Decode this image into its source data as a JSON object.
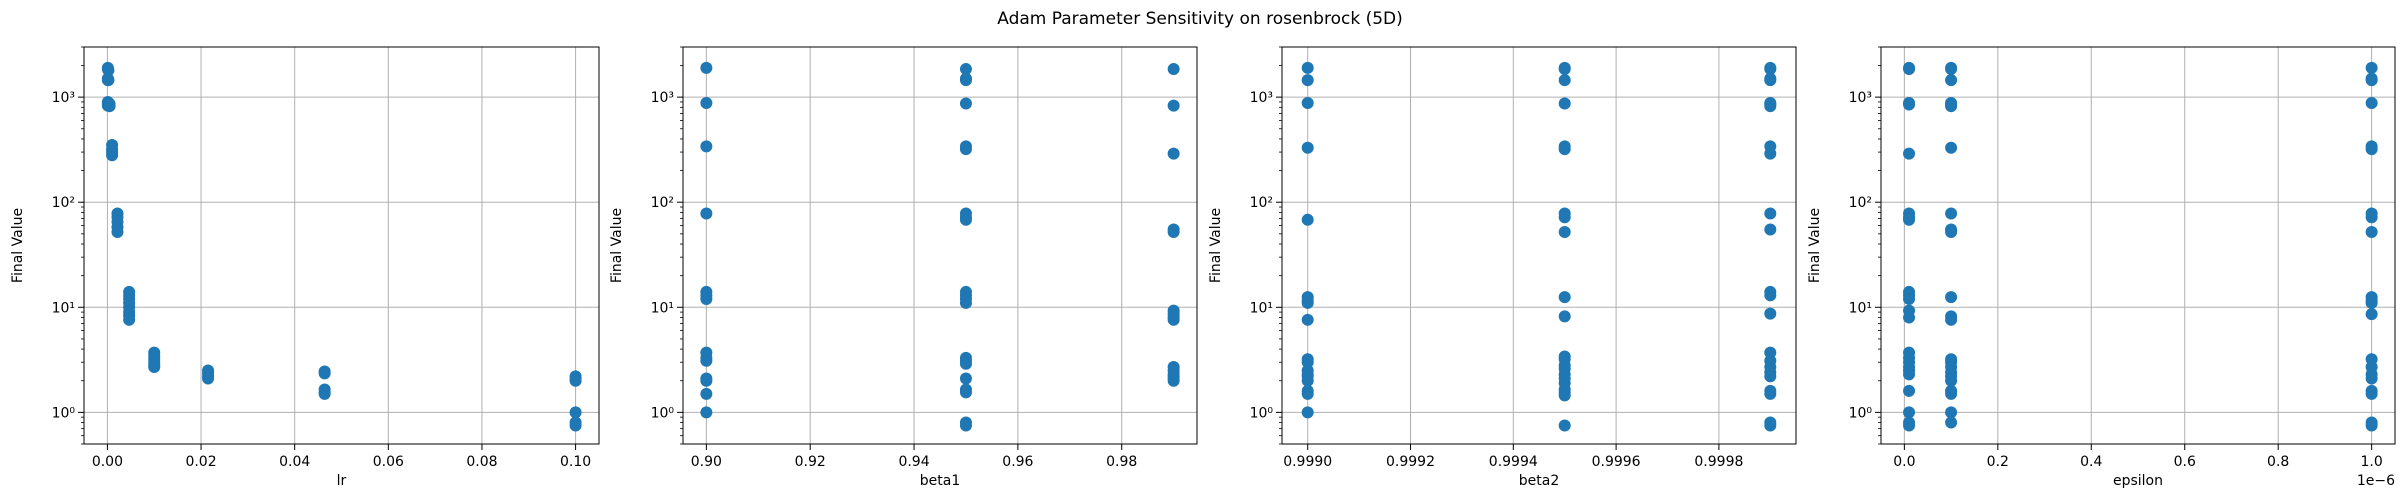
{
  "figure": {
    "title": "Adam Parameter Sensitivity on rosenbrock (5D)"
  },
  "colors": {
    "marker": "#1f77b4",
    "grid": "#b0b0b0",
    "axes": "#000000"
  },
  "chart_data": [
    {
      "type": "scatter",
      "xlabel": "lr",
      "ylabel": "Final Value",
      "xscale": "linear",
      "yscale": "log",
      "xlim": [
        -0.005,
        0.105
      ],
      "ylim": [
        0.5,
        3000
      ],
      "xticks": [
        0.0,
        0.02,
        0.04,
        0.06,
        0.08,
        0.1
      ],
      "xtick_labels": [
        "0.00",
        "0.02",
        "0.04",
        "0.06",
        "0.08",
        "0.10"
      ],
      "yticks": [
        1,
        10,
        100,
        1000
      ],
      "ytick_labels": [
        "10⁰",
        "10¹",
        "10²",
        "10³"
      ],
      "offset_label": "",
      "grid": true,
      "points": [
        [
          0.0001,
          1900
        ],
        [
          0.0001,
          1850
        ],
        [
          0.0001,
          1500
        ],
        [
          0.0001,
          1450
        ],
        [
          0.0001,
          900
        ],
        [
          0.0001,
          870
        ],
        [
          0.0001,
          850
        ],
        [
          0.0001,
          830
        ],
        [
          0.000215,
          1800
        ],
        [
          0.000215,
          1450
        ],
        [
          0.000215,
          880
        ],
        [
          0.000464,
          860
        ],
        [
          0.000464,
          820
        ],
        [
          0.001,
          350
        ],
        [
          0.001,
          320
        ],
        [
          0.001,
          300
        ],
        [
          0.001,
          280
        ],
        [
          0.00215,
          78
        ],
        [
          0.00215,
          72
        ],
        [
          0.00215,
          65
        ],
        [
          0.00215,
          58
        ],
        [
          0.00215,
          52
        ],
        [
          0.00464,
          14
        ],
        [
          0.00464,
          13
        ],
        [
          0.00464,
          12
        ],
        [
          0.00464,
          11
        ],
        [
          0.00464,
          10
        ],
        [
          0.00464,
          9
        ],
        [
          0.00464,
          8.3
        ],
        [
          0.00464,
          7.6
        ],
        [
          0.01,
          3.7
        ],
        [
          0.01,
          3.4
        ],
        [
          0.01,
          3.2
        ],
        [
          0.01,
          3.0
        ],
        [
          0.01,
          2.8
        ],
        [
          0.01,
          2.7
        ],
        [
          0.0215,
          2.5
        ],
        [
          0.0215,
          2.35
        ],
        [
          0.0215,
          2.2
        ],
        [
          0.0215,
          2.1
        ],
        [
          0.0464,
          2.45
        ],
        [
          0.0464,
          2.35
        ],
        [
          0.0464,
          1.65
        ],
        [
          0.0464,
          1.55
        ],
        [
          0.0464,
          1.5
        ],
        [
          0.1,
          2.2
        ],
        [
          0.1,
          2.1
        ],
        [
          0.1,
          2.0
        ],
        [
          0.1,
          1.0
        ],
        [
          0.1,
          0.8
        ],
        [
          0.1,
          0.75
        ]
      ]
    },
    {
      "type": "scatter",
      "xlabel": "beta1",
      "ylabel": "Final Value",
      "xscale": "linear",
      "yscale": "log",
      "xlim": [
        0.8955,
        0.9945
      ],
      "ylim": [
        0.5,
        3000
      ],
      "xticks": [
        0.9,
        0.92,
        0.94,
        0.96,
        0.98
      ],
      "xtick_labels": [
        "0.90",
        "0.92",
        "0.94",
        "0.96",
        "0.98"
      ],
      "yticks": [
        1,
        10,
        100,
        1000
      ],
      "ytick_labels": [
        "10⁰",
        "10¹",
        "10²",
        "10³"
      ],
      "offset_label": "",
      "grid": true,
      "points": [
        [
          0.9,
          1900
        ],
        [
          0.9,
          880
        ],
        [
          0.9,
          340
        ],
        [
          0.9,
          78
        ],
        [
          0.9,
          14
        ],
        [
          0.9,
          13
        ],
        [
          0.9,
          12
        ],
        [
          0.9,
          3.7
        ],
        [
          0.9,
          3.3
        ],
        [
          0.9,
          3.1
        ],
        [
          0.9,
          2.1
        ],
        [
          0.9,
          2.0
        ],
        [
          0.9,
          1.5
        ],
        [
          0.9,
          1.0
        ],
        [
          0.95,
          1850
        ],
        [
          0.95,
          1500
        ],
        [
          0.95,
          1450
        ],
        [
          0.95,
          870
        ],
        [
          0.95,
          340
        ],
        [
          0.95,
          320
        ],
        [
          0.95,
          78
        ],
        [
          0.95,
          72
        ],
        [
          0.95,
          68
        ],
        [
          0.95,
          14
        ],
        [
          0.95,
          13
        ],
        [
          0.95,
          12
        ],
        [
          0.95,
          11
        ],
        [
          0.95,
          3.3
        ],
        [
          0.95,
          3.1
        ],
        [
          0.95,
          2.9
        ],
        [
          0.95,
          2.1
        ],
        [
          0.95,
          1.65
        ],
        [
          0.95,
          1.55
        ],
        [
          0.95,
          0.8
        ],
        [
          0.95,
          0.75
        ],
        [
          0.99,
          1850
        ],
        [
          0.99,
          830
        ],
        [
          0.99,
          290
        ],
        [
          0.99,
          55
        ],
        [
          0.99,
          52
        ],
        [
          0.99,
          9.3
        ],
        [
          0.99,
          8.6
        ],
        [
          0.99,
          8.0
        ],
        [
          0.99,
          7.6
        ],
        [
          0.99,
          2.7
        ],
        [
          0.99,
          2.5
        ],
        [
          0.99,
          2.3
        ],
        [
          0.99,
          2.2
        ],
        [
          0.99,
          2.1
        ],
        [
          0.99,
          2.0
        ]
      ]
    },
    {
      "type": "scatter",
      "xlabel": "beta2",
      "ylabel": "Final Value",
      "xscale": "linear",
      "yscale": "log",
      "xlim": [
        0.99895,
        0.99995
      ],
      "ylim": [
        0.5,
        3000
      ],
      "xticks": [
        0.999,
        0.9992,
        0.9994,
        0.9996,
        0.9998
      ],
      "xtick_labels": [
        "0.9990",
        "0.9992",
        "0.9994",
        "0.9996",
        "0.9998"
      ],
      "yticks": [
        1,
        10,
        100,
        1000
      ],
      "ytick_labels": [
        "10⁰",
        "10¹",
        "10²",
        "10³"
      ],
      "offset_label": "",
      "grid": true,
      "points": [
        [
          0.999,
          1900
        ],
        [
          0.999,
          1450
        ],
        [
          0.999,
          880
        ],
        [
          0.999,
          330
        ],
        [
          0.999,
          68
        ],
        [
          0.999,
          12.5
        ],
        [
          0.999,
          11.5
        ],
        [
          0.999,
          11
        ],
        [
          0.999,
          7.6
        ],
        [
          0.999,
          3.2
        ],
        [
          0.999,
          3.0
        ],
        [
          0.999,
          2.5
        ],
        [
          0.999,
          2.3
        ],
        [
          0.999,
          2.2
        ],
        [
          0.999,
          2.0
        ],
        [
          0.999,
          1.6
        ],
        [
          0.999,
          1.5
        ],
        [
          0.999,
          1.0
        ],
        [
          0.9995,
          1900
        ],
        [
          0.9995,
          1850
        ],
        [
          0.9995,
          1450
        ],
        [
          0.9995,
          870
        ],
        [
          0.9995,
          340
        ],
        [
          0.9995,
          320
        ],
        [
          0.9995,
          78
        ],
        [
          0.9995,
          72
        ],
        [
          0.9995,
          52
        ],
        [
          0.9995,
          12.5
        ],
        [
          0.9995,
          8.2
        ],
        [
          0.9995,
          3.4
        ],
        [
          0.9995,
          3.2
        ],
        [
          0.9995,
          2.8
        ],
        [
          0.9995,
          2.6
        ],
        [
          0.9995,
          2.3
        ],
        [
          0.9995,
          2.1
        ],
        [
          0.9995,
          1.9
        ],
        [
          0.9995,
          1.65
        ],
        [
          0.9995,
          1.55
        ],
        [
          0.9995,
          1.45
        ],
        [
          0.9995,
          0.75
        ],
        [
          0.9999,
          1900
        ],
        [
          0.9999,
          1850
        ],
        [
          0.9999,
          1500
        ],
        [
          0.9999,
          1450
        ],
        [
          0.9999,
          880
        ],
        [
          0.9999,
          850
        ],
        [
          0.9999,
          820
        ],
        [
          0.9999,
          340
        ],
        [
          0.9999,
          290
        ],
        [
          0.9999,
          78
        ],
        [
          0.9999,
          55
        ],
        [
          0.9999,
          14
        ],
        [
          0.9999,
          13
        ],
        [
          0.9999,
          8.7
        ],
        [
          0.9999,
          3.7
        ],
        [
          0.9999,
          3.1
        ],
        [
          0.9999,
          2.7
        ],
        [
          0.9999,
          2.4
        ],
        [
          0.9999,
          2.2
        ],
        [
          0.9999,
          1.6
        ],
        [
          0.9999,
          1.5
        ],
        [
          0.9999,
          0.8
        ],
        [
          0.9999,
          0.75
        ]
      ]
    },
    {
      "type": "scatter",
      "xlabel": "epsilon",
      "ylabel": "Final Value",
      "xscale": "linear",
      "yscale": "log",
      "xlim": [
        -0.05,
        1.05
      ],
      "ylim": [
        0.5,
        3000
      ],
      "xticks": [
        0.0,
        0.2,
        0.4,
        0.6,
        0.8,
        1.0
      ],
      "xtick_labels": [
        "0.0",
        "0.2",
        "0.4",
        "0.6",
        "0.8",
        "1.0"
      ],
      "yticks": [
        1,
        10,
        100,
        1000
      ],
      "ytick_labels": [
        "10⁰",
        "10¹",
        "10²",
        "10³"
      ],
      "offset_label": "1e−6",
      "grid": true,
      "points": [
        [
          0.01,
          1900
        ],
        [
          0.01,
          1850
        ],
        [
          0.01,
          880
        ],
        [
          0.01,
          850
        ],
        [
          0.01,
          290
        ],
        [
          0.01,
          78
        ],
        [
          0.01,
          72
        ],
        [
          0.01,
          68
        ],
        [
          0.01,
          14
        ],
        [
          0.01,
          13
        ],
        [
          0.01,
          12
        ],
        [
          0.01,
          9.3
        ],
        [
          0.01,
          8.0
        ],
        [
          0.01,
          3.7
        ],
        [
          0.01,
          3.3
        ],
        [
          0.01,
          3.0
        ],
        [
          0.01,
          2.7
        ],
        [
          0.01,
          2.5
        ],
        [
          0.01,
          2.3
        ],
        [
          0.01,
          1.6
        ],
        [
          0.01,
          1.0
        ],
        [
          0.01,
          0.8
        ],
        [
          0.01,
          0.75
        ],
        [
          0.1,
          1900
        ],
        [
          0.1,
          1850
        ],
        [
          0.1,
          1450
        ],
        [
          0.1,
          880
        ],
        [
          0.1,
          850
        ],
        [
          0.1,
          820
        ],
        [
          0.1,
          330
        ],
        [
          0.1,
          78
        ],
        [
          0.1,
          55
        ],
        [
          0.1,
          52
        ],
        [
          0.1,
          12.5
        ],
        [
          0.1,
          8.2
        ],
        [
          0.1,
          7.6
        ],
        [
          0.1,
          3.2
        ],
        [
          0.1,
          3.0
        ],
        [
          0.1,
          2.7
        ],
        [
          0.1,
          2.4
        ],
        [
          0.1,
          2.2
        ],
        [
          0.1,
          2.0
        ],
        [
          0.1,
          1.6
        ],
        [
          0.1,
          1.5
        ],
        [
          0.1,
          1.0
        ],
        [
          0.1,
          0.8
        ],
        [
          1.0,
          1900
        ],
        [
          1.0,
          1500
        ],
        [
          1.0,
          1450
        ],
        [
          1.0,
          880
        ],
        [
          1.0,
          340
        ],
        [
          1.0,
          320
        ],
        [
          1.0,
          78
        ],
        [
          1.0,
          72
        ],
        [
          1.0,
          52
        ],
        [
          1.0,
          12.5
        ],
        [
          1.0,
          11.5
        ],
        [
          1.0,
          11
        ],
        [
          1.0,
          8.6
        ],
        [
          1.0,
          3.2
        ],
        [
          1.0,
          2.7
        ],
        [
          1.0,
          2.3
        ],
        [
          1.0,
          2.1
        ],
        [
          1.0,
          1.6
        ],
        [
          1.0,
          1.5
        ],
        [
          1.0,
          0.8
        ],
        [
          1.0,
          0.75
        ]
      ]
    }
  ]
}
